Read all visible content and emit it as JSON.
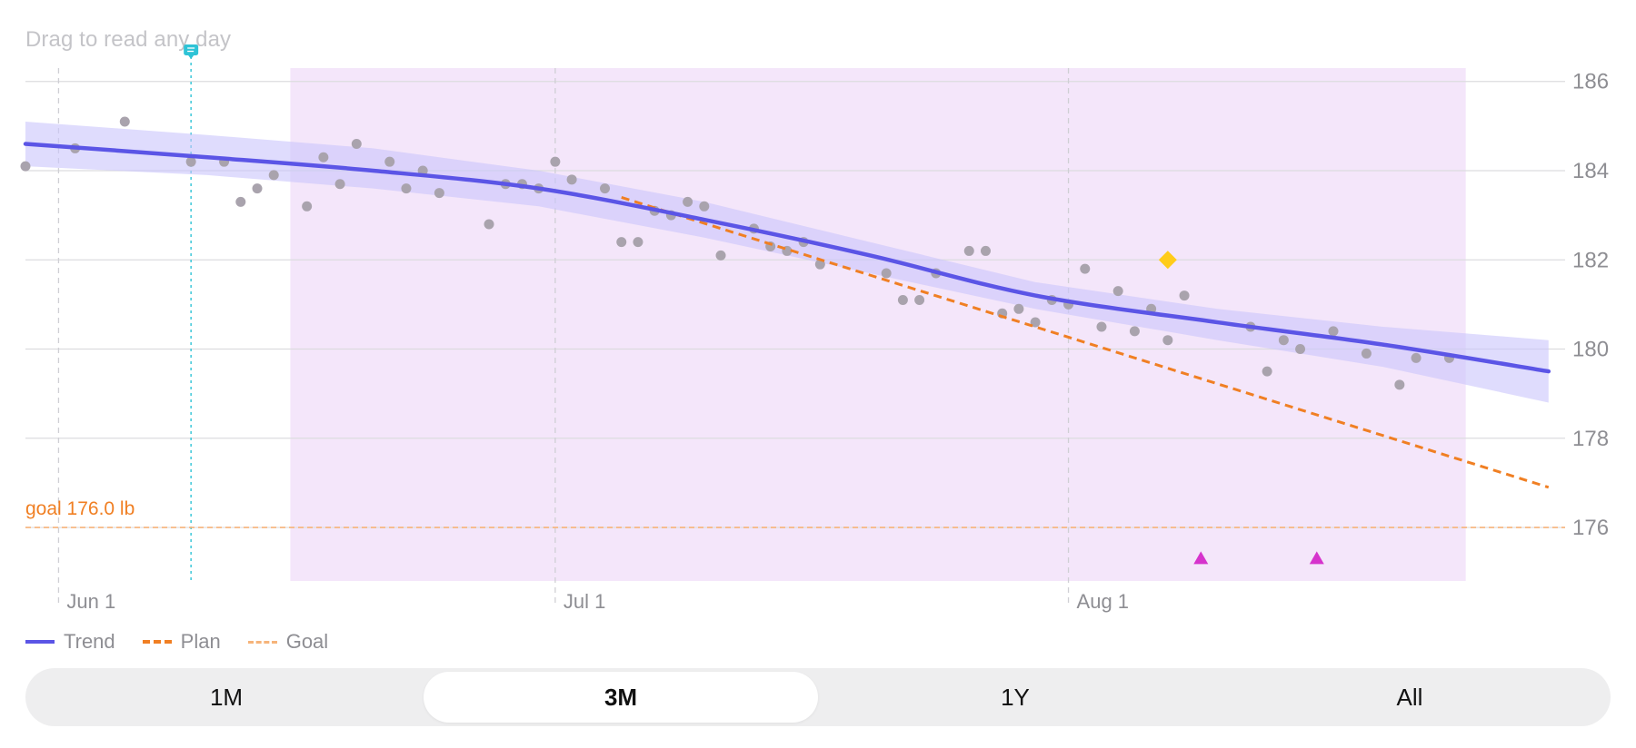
{
  "hint": "Drag to read any day",
  "goal_label": "goal 176.0 lb",
  "legend": [
    {
      "key": "trend",
      "label": "Trend"
    },
    {
      "key": "plan",
      "label": "Plan"
    },
    {
      "key": "goal",
      "label": "Goal"
    }
  ],
  "range_selector": {
    "options": [
      "1M",
      "3M",
      "1Y",
      "All"
    ],
    "selected": "3M"
  },
  "colors": {
    "trend": "#5b55e6",
    "band": "#c9c5fb",
    "plan": "#f07f23",
    "goal": "#f6b47a",
    "highlight_region": "#f4e6fa",
    "scatter": "#a9a3ad",
    "diamond": "#ffcc1a",
    "triangle": "#d633cc",
    "note": "#2ec3d6",
    "grid": "#dcdcdf"
  },
  "chart_data": {
    "type": "line",
    "x_ticks": [
      {
        "date": "2025-06-01",
        "label": "Jun 1"
      },
      {
        "date": "2025-07-01",
        "label": "Jul 1"
      },
      {
        "date": "2025-08-01",
        "label": "Aug 1"
      }
    ],
    "xlim": [
      "2025-05-30",
      "2025-08-31"
    ],
    "ylim": [
      174.8,
      186.3
    ],
    "y_ticks": [
      176,
      178,
      180,
      182,
      184,
      186
    ],
    "y_axis_side": "right",
    "grid": true,
    "legend_position": "bottom-left",
    "goal": 176.0,
    "highlight_range": [
      "2025-06-15",
      "2025-08-25"
    ],
    "note_marker_date": "2025-06-09",
    "series": [
      {
        "name": "Trend",
        "style": "line",
        "points": [
          [
            "2025-05-30",
            184.6
          ],
          [
            "2025-06-10",
            184.3
          ],
          [
            "2025-06-20",
            184.0
          ],
          [
            "2025-06-30",
            183.6
          ],
          [
            "2025-07-10",
            182.9
          ],
          [
            "2025-07-20",
            182.1
          ],
          [
            "2025-07-30",
            181.2
          ],
          [
            "2025-08-10",
            180.6
          ],
          [
            "2025-08-20",
            180.1
          ],
          [
            "2025-08-30",
            179.5
          ]
        ],
        "band_upper": [
          185.1,
          184.8,
          184.5,
          184.0,
          183.3,
          182.4,
          181.5,
          180.9,
          180.5,
          180.2
        ],
        "band_lower": [
          184.1,
          183.9,
          183.6,
          183.2,
          182.5,
          181.7,
          180.9,
          180.2,
          179.6,
          178.8
        ]
      },
      {
        "name": "Plan",
        "style": "dashed",
        "points": [
          [
            "2025-07-05",
            183.4
          ],
          [
            "2025-08-30",
            176.9
          ]
        ]
      },
      {
        "name": "Goal",
        "style": "dashed",
        "points": [
          [
            "2025-05-30",
            176.0
          ],
          [
            "2025-08-31",
            176.0
          ]
        ]
      }
    ],
    "scatter": [
      [
        "2025-05-30",
        184.1
      ],
      [
        "2025-06-02",
        184.5
      ],
      [
        "2025-06-05",
        185.1
      ],
      [
        "2025-06-09",
        184.2
      ],
      [
        "2025-06-11",
        184.2
      ],
      [
        "2025-06-12",
        183.3
      ],
      [
        "2025-06-13",
        183.6
      ],
      [
        "2025-06-14",
        183.9
      ],
      [
        "2025-06-16",
        183.2
      ],
      [
        "2025-06-17",
        184.3
      ],
      [
        "2025-06-18",
        183.7
      ],
      [
        "2025-06-19",
        184.6
      ],
      [
        "2025-06-21",
        184.2
      ],
      [
        "2025-06-22",
        183.6
      ],
      [
        "2025-06-23",
        184.0
      ],
      [
        "2025-06-24",
        183.5
      ],
      [
        "2025-06-27",
        182.8
      ],
      [
        "2025-06-28",
        183.7
      ],
      [
        "2025-06-29",
        183.7
      ],
      [
        "2025-06-30",
        183.6
      ],
      [
        "2025-07-01",
        184.2
      ],
      [
        "2025-07-02",
        183.8
      ],
      [
        "2025-07-04",
        183.6
      ],
      [
        "2025-07-05",
        182.4
      ],
      [
        "2025-07-06",
        182.4
      ],
      [
        "2025-07-07",
        183.1
      ],
      [
        "2025-07-08",
        183.0
      ],
      [
        "2025-07-09",
        183.3
      ],
      [
        "2025-07-10",
        183.2
      ],
      [
        "2025-07-11",
        182.1
      ],
      [
        "2025-07-13",
        182.7
      ],
      [
        "2025-07-14",
        182.3
      ],
      [
        "2025-07-15",
        182.2
      ],
      [
        "2025-07-16",
        182.4
      ],
      [
        "2025-07-17",
        181.9
      ],
      [
        "2025-07-21",
        181.7
      ],
      [
        "2025-07-22",
        181.1
      ],
      [
        "2025-07-23",
        181.1
      ],
      [
        "2025-07-24",
        181.7
      ],
      [
        "2025-07-26",
        182.2
      ],
      [
        "2025-07-27",
        182.2
      ],
      [
        "2025-07-28",
        180.8
      ],
      [
        "2025-07-29",
        180.9
      ],
      [
        "2025-07-30",
        180.6
      ],
      [
        "2025-07-31",
        181.1
      ],
      [
        "2025-08-01",
        181.0
      ],
      [
        "2025-08-02",
        181.8
      ],
      [
        "2025-08-03",
        180.5
      ],
      [
        "2025-08-04",
        181.3
      ],
      [
        "2025-08-05",
        180.4
      ],
      [
        "2025-08-06",
        180.9
      ],
      [
        "2025-08-07",
        180.2
      ],
      [
        "2025-08-08",
        181.2
      ],
      [
        "2025-08-12",
        180.5
      ],
      [
        "2025-08-13",
        179.5
      ],
      [
        "2025-08-14",
        180.2
      ],
      [
        "2025-08-15",
        180.0
      ],
      [
        "2025-08-17",
        180.4
      ],
      [
        "2025-08-19",
        179.9
      ],
      [
        "2025-08-21",
        179.2
      ],
      [
        "2025-08-22",
        179.8
      ],
      [
        "2025-08-24",
        179.8
      ]
    ],
    "diamond_markers": [
      [
        "2025-08-07",
        182.0
      ]
    ],
    "triangle_markers": [
      [
        "2025-08-09",
        175.3
      ],
      [
        "2025-08-16",
        175.3
      ]
    ]
  }
}
